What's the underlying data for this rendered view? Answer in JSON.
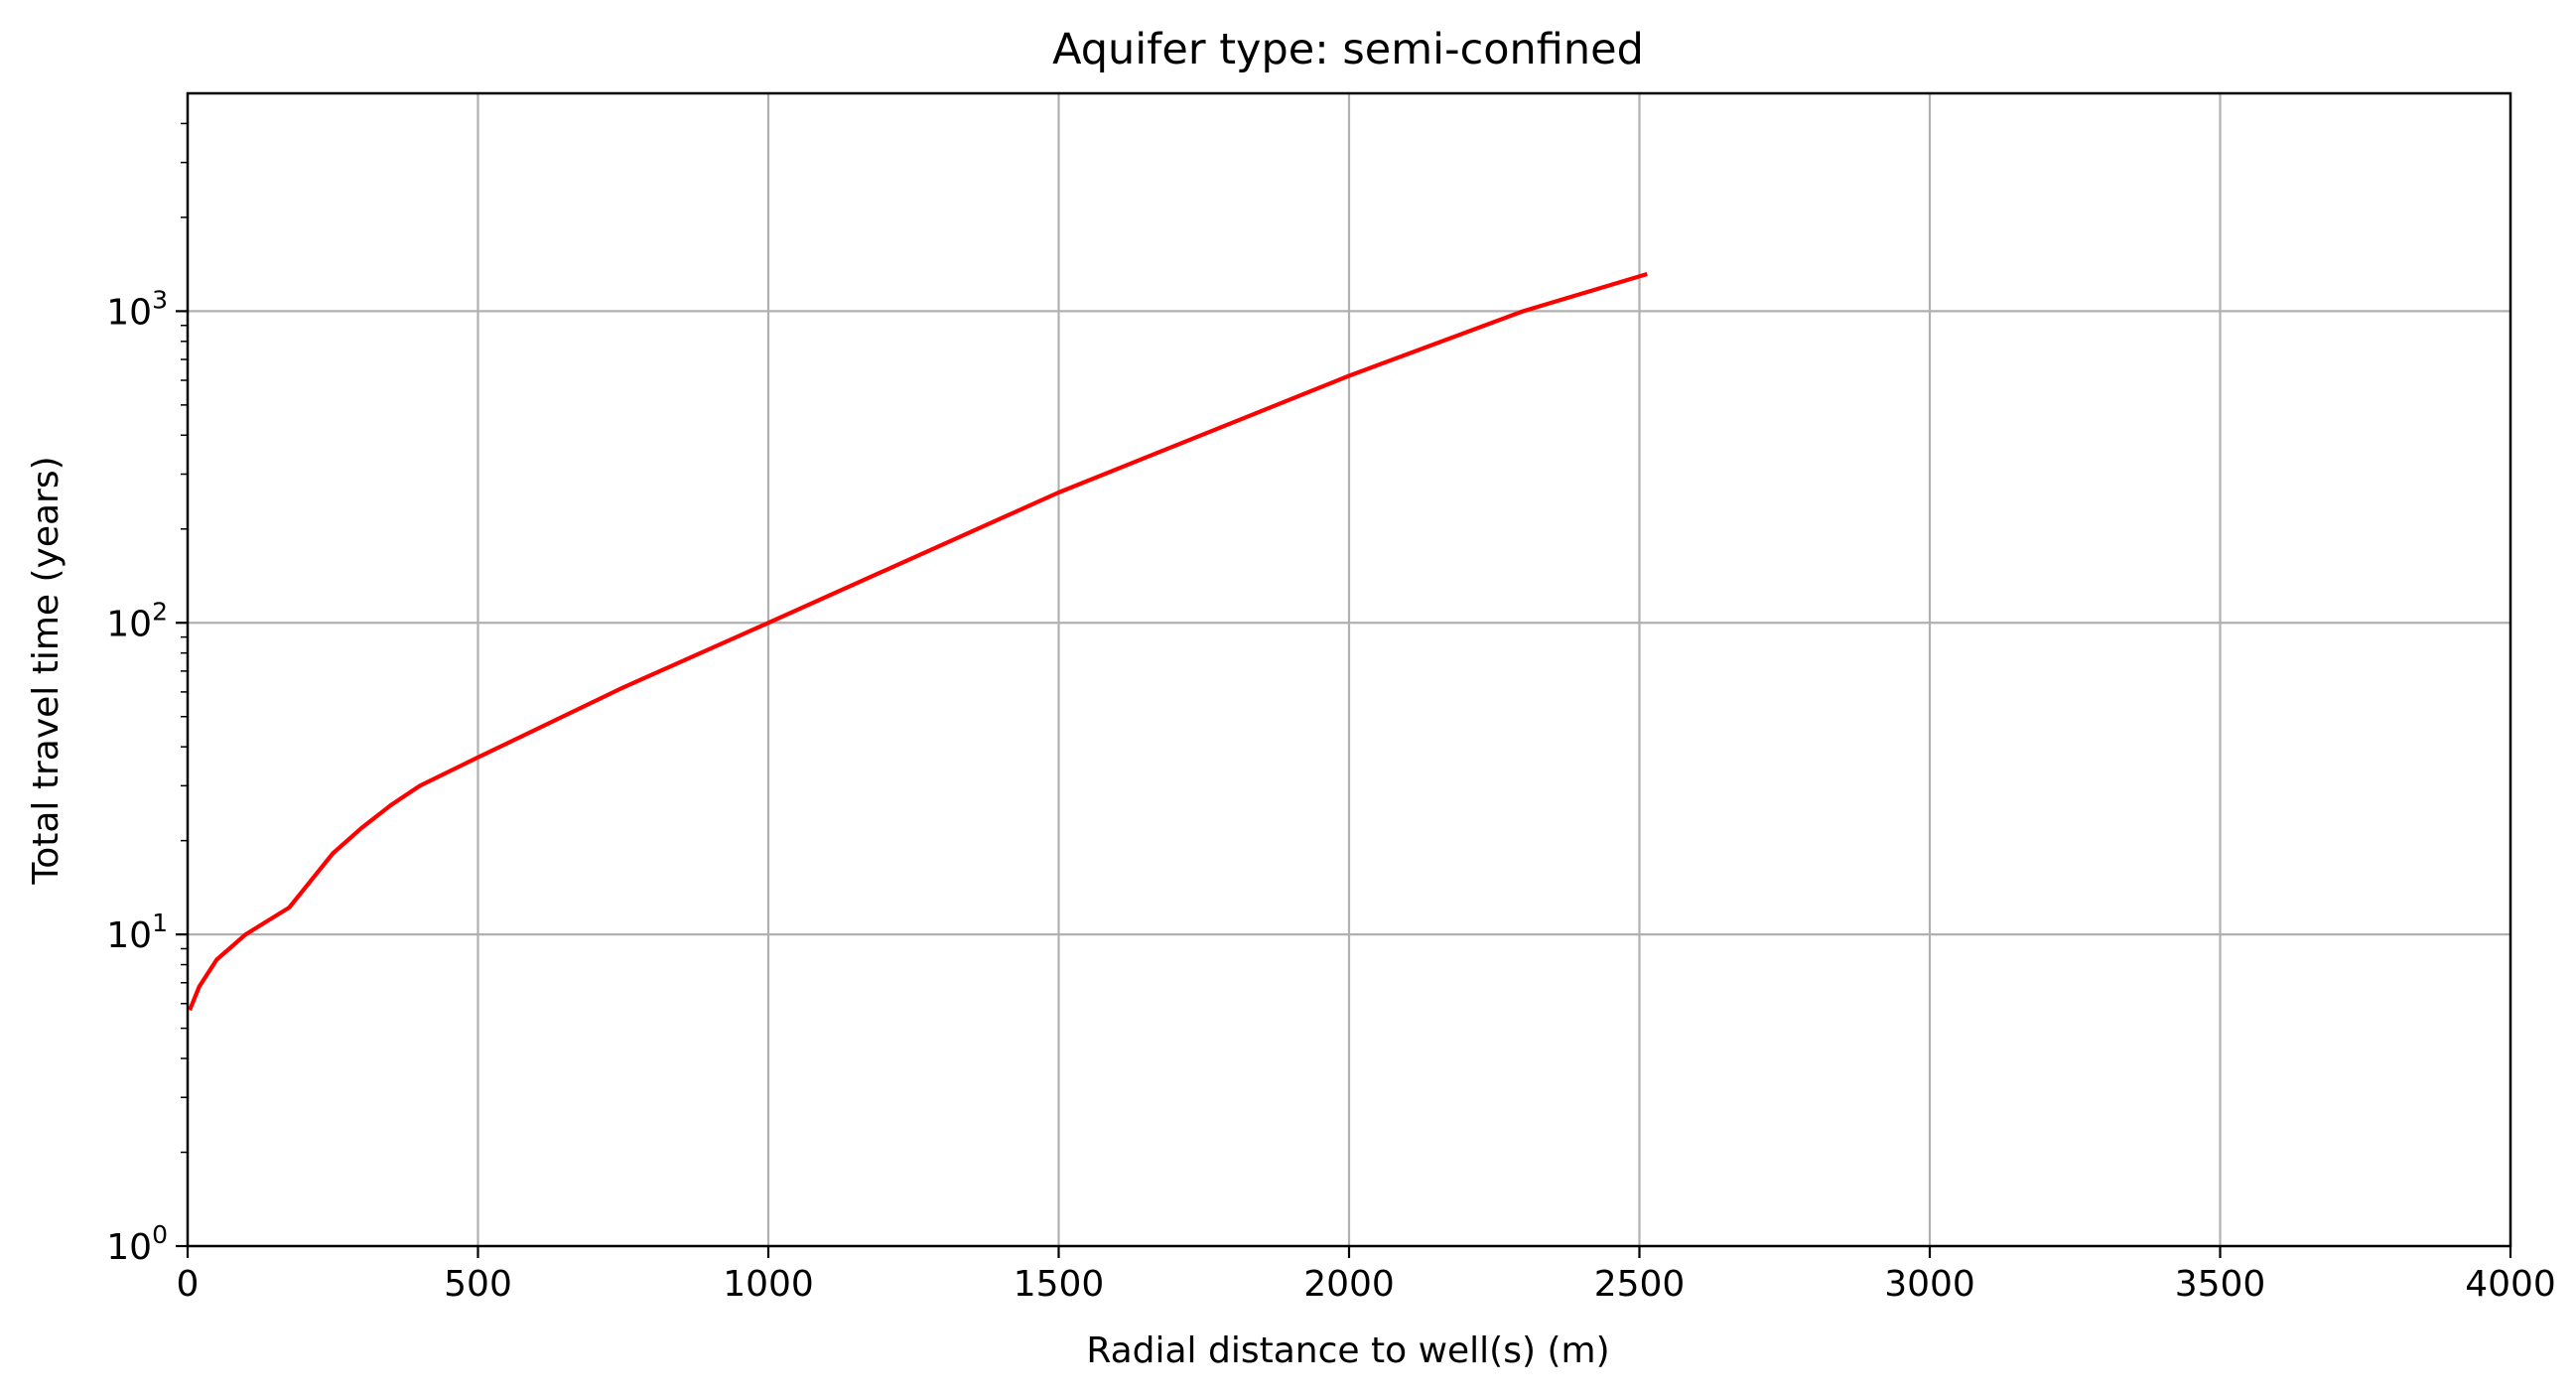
{
  "chart_data": {
    "type": "line",
    "title": "Aquifer type: semi-confined",
    "xlabel": "Radial distance to well(s) (m)",
    "ylabel": "Total travel time (years)",
    "xlim": [
      0,
      4000
    ],
    "ylim": [
      1,
      5000
    ],
    "yscale": "log",
    "grid": true,
    "x_ticks": [
      "0",
      "500",
      "1000",
      "1500",
      "2000",
      "2500",
      "3000",
      "3500",
      "4000"
    ],
    "y_ticks": [
      {
        "base": "10",
        "exp": "0"
      },
      {
        "base": "10",
        "exp": "1"
      },
      {
        "base": "10",
        "exp": "2"
      },
      {
        "base": "10",
        "exp": "3"
      }
    ],
    "series": [
      {
        "color": "#ff0000",
        "x": [
          5,
          20,
          50,
          100,
          175,
          250,
          300,
          350,
          400,
          500,
          750,
          1000,
          1500,
          2000,
          2300,
          2510
        ],
        "y": [
          5.8,
          6.8,
          8.3,
          10.0,
          12.2,
          18.2,
          22.0,
          26.0,
          30.0,
          37.0,
          62.0,
          100.0,
          262.0,
          620.0,
          1000.0,
          1310.0
        ]
      }
    ]
  }
}
